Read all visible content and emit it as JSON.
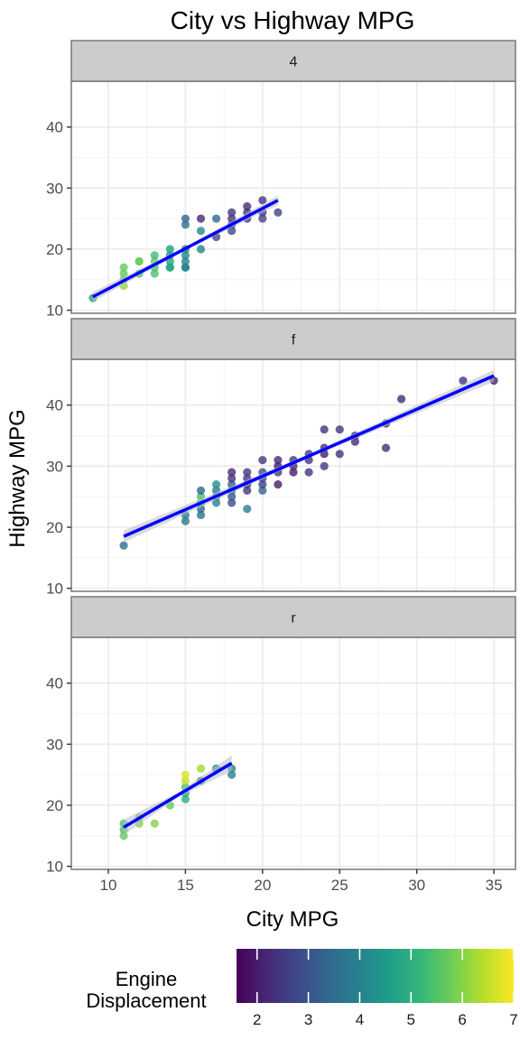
{
  "chart_data": {
    "type": "scatter",
    "title": "City vs Highway MPG",
    "xlabel": "City MPG",
    "ylabel": "Highway MPG",
    "xlim": [
      7.6,
      36.4
    ],
    "ylim": [
      9.5,
      47.5
    ],
    "x_ticks": [
      10,
      15,
      20,
      25,
      30,
      35
    ],
    "y_ticks": [
      10,
      20,
      30,
      40
    ],
    "grid": true,
    "trend_color": "#0000ff",
    "ribbon_color": "#bdbdbd",
    "strip_fill": "#cccccc",
    "panel_border": "#7f7f7f",
    "grid_major": "#ebebeb",
    "colormap": "viridis",
    "legend": {
      "title_line1": "Engine",
      "title_line2": "Displacement",
      "min": 1.6,
      "max": 7.0,
      "ticks": [
        2,
        3,
        4,
        5,
        6,
        7
      ],
      "placement": "bottom"
    },
    "panels": [
      {
        "label": "4",
        "trend": {
          "x0": 9,
          "y0": 12.2,
          "x1": 21,
          "y1": 28.0,
          "se": 0.5
        },
        "points": [
          [
            9,
            12,
            4.7
          ],
          [
            11,
            15,
            5.7
          ],
          [
            11,
            16,
            5.7
          ],
          [
            11,
            17,
            5.7
          ],
          [
            11,
            14,
            6.1
          ],
          [
            12,
            16,
            5.3
          ],
          [
            12,
            18,
            5.9
          ],
          [
            12,
            18,
            5.7
          ],
          [
            13,
            17,
            5.4
          ],
          [
            13,
            16,
            5.4
          ],
          [
            13,
            18,
            5.7
          ],
          [
            13,
            19,
            5.3
          ],
          [
            14,
            17,
            5.3
          ],
          [
            14,
            18,
            4.7
          ],
          [
            14,
            19,
            4.4
          ],
          [
            14,
            20,
            4.6
          ],
          [
            14,
            17,
            4.7
          ],
          [
            15,
            17,
            4.0
          ],
          [
            15,
            18,
            4.0
          ],
          [
            15,
            19,
            4.2
          ],
          [
            15,
            20,
            3.9
          ],
          [
            15,
            25,
            3.4
          ],
          [
            15,
            24,
            3.6
          ],
          [
            15,
            17,
            4.0
          ],
          [
            16,
            20,
            4.0
          ],
          [
            16,
            23,
            4.2
          ],
          [
            16,
            25,
            2.2
          ],
          [
            17,
            22,
            2.8
          ],
          [
            17,
            25,
            3.4
          ],
          [
            18,
            26,
            2.4
          ],
          [
            18,
            24,
            2.7
          ],
          [
            18,
            23,
            2.8
          ],
          [
            18,
            25,
            2.5
          ],
          [
            19,
            26,
            2.5
          ],
          [
            19,
            25,
            2.5
          ],
          [
            19,
            27,
            2.2
          ],
          [
            20,
            28,
            2.5
          ],
          [
            20,
            26,
            2.5
          ],
          [
            20,
            25,
            2.7
          ],
          [
            21,
            26,
            2.7
          ]
        ]
      },
      {
        "label": "f",
        "trend": {
          "x0": 11,
          "y0": 18.5,
          "x1": 35,
          "y1": 44.8,
          "se": 0.6
        },
        "points": [
          [
            11,
            17,
            3.5
          ],
          [
            15,
            21,
            3.8
          ],
          [
            15,
            22,
            3.8
          ],
          [
            16,
            22,
            3.6
          ],
          [
            16,
            23,
            3.4
          ],
          [
            16,
            24,
            4.6
          ],
          [
            16,
            25,
            5.4
          ],
          [
            16,
            26,
            3.4
          ],
          [
            17,
            24,
            4.0
          ],
          [
            17,
            25,
            3.8
          ],
          [
            17,
            26,
            3.8
          ],
          [
            17,
            27,
            4.2
          ],
          [
            18,
            24,
            2.8
          ],
          [
            18,
            25,
            3.1
          ],
          [
            18,
            26,
            3.3
          ],
          [
            18,
            27,
            3.3
          ],
          [
            18,
            28,
            2.4
          ],
          [
            18,
            29,
            2.2
          ],
          [
            19,
            23,
            3.9
          ],
          [
            19,
            26,
            2.5
          ],
          [
            19,
            27,
            2.4
          ],
          [
            19,
            28,
            2.5
          ],
          [
            19,
            29,
            2.5
          ],
          [
            20,
            26,
            3.3
          ],
          [
            20,
            27,
            2.7
          ],
          [
            20,
            28,
            2.8
          ],
          [
            20,
            29,
            3.0
          ],
          [
            20,
            31,
            2.5
          ],
          [
            21,
            27,
            2.0
          ],
          [
            21,
            29,
            2.5
          ],
          [
            21,
            30,
            2.0
          ],
          [
            21,
            31,
            2.2
          ],
          [
            22,
            29,
            2.0
          ],
          [
            22,
            30,
            2.2
          ],
          [
            22,
            31,
            2.5
          ],
          [
            23,
            29,
            2.4
          ],
          [
            23,
            31,
            2.5
          ],
          [
            23,
            32,
            2.7
          ],
          [
            24,
            30,
            2.4
          ],
          [
            24,
            32,
            2.0
          ],
          [
            24,
            33,
            2.2
          ],
          [
            24,
            36,
            2.4
          ],
          [
            25,
            32,
            2.4
          ],
          [
            25,
            36,
            2.4
          ],
          [
            26,
            34,
            2.2
          ],
          [
            26,
            35,
            2.3
          ],
          [
            28,
            33,
            2.3
          ],
          [
            28,
            37,
            2.0
          ],
          [
            29,
            41,
            2.2
          ],
          [
            33,
            44,
            2.4
          ],
          [
            35,
            44,
            2.1
          ]
        ]
      },
      {
        "label": "r",
        "trend": {
          "x0": 11,
          "y0": 16.4,
          "x1": 18,
          "y1": 26.9,
          "se": 0.8
        },
        "points": [
          [
            11,
            15,
            5.7
          ],
          [
            11,
            16,
            5.4
          ],
          [
            11,
            17,
            5.4
          ],
          [
            12,
            17,
            6.0
          ],
          [
            12,
            18,
            5.7
          ],
          [
            13,
            17,
            6.0
          ],
          [
            14,
            20,
            5.7
          ],
          [
            15,
            21,
            5.0
          ],
          [
            15,
            22,
            5.0
          ],
          [
            15,
            23,
            5.4
          ],
          [
            15,
            24,
            6.5
          ],
          [
            15,
            25,
            6.7
          ],
          [
            16,
            26,
            6.2
          ],
          [
            16,
            24,
            4.0
          ],
          [
            17,
            26,
            4.2
          ],
          [
            18,
            25,
            4.0
          ],
          [
            18,
            26,
            4.0
          ]
        ]
      }
    ]
  }
}
